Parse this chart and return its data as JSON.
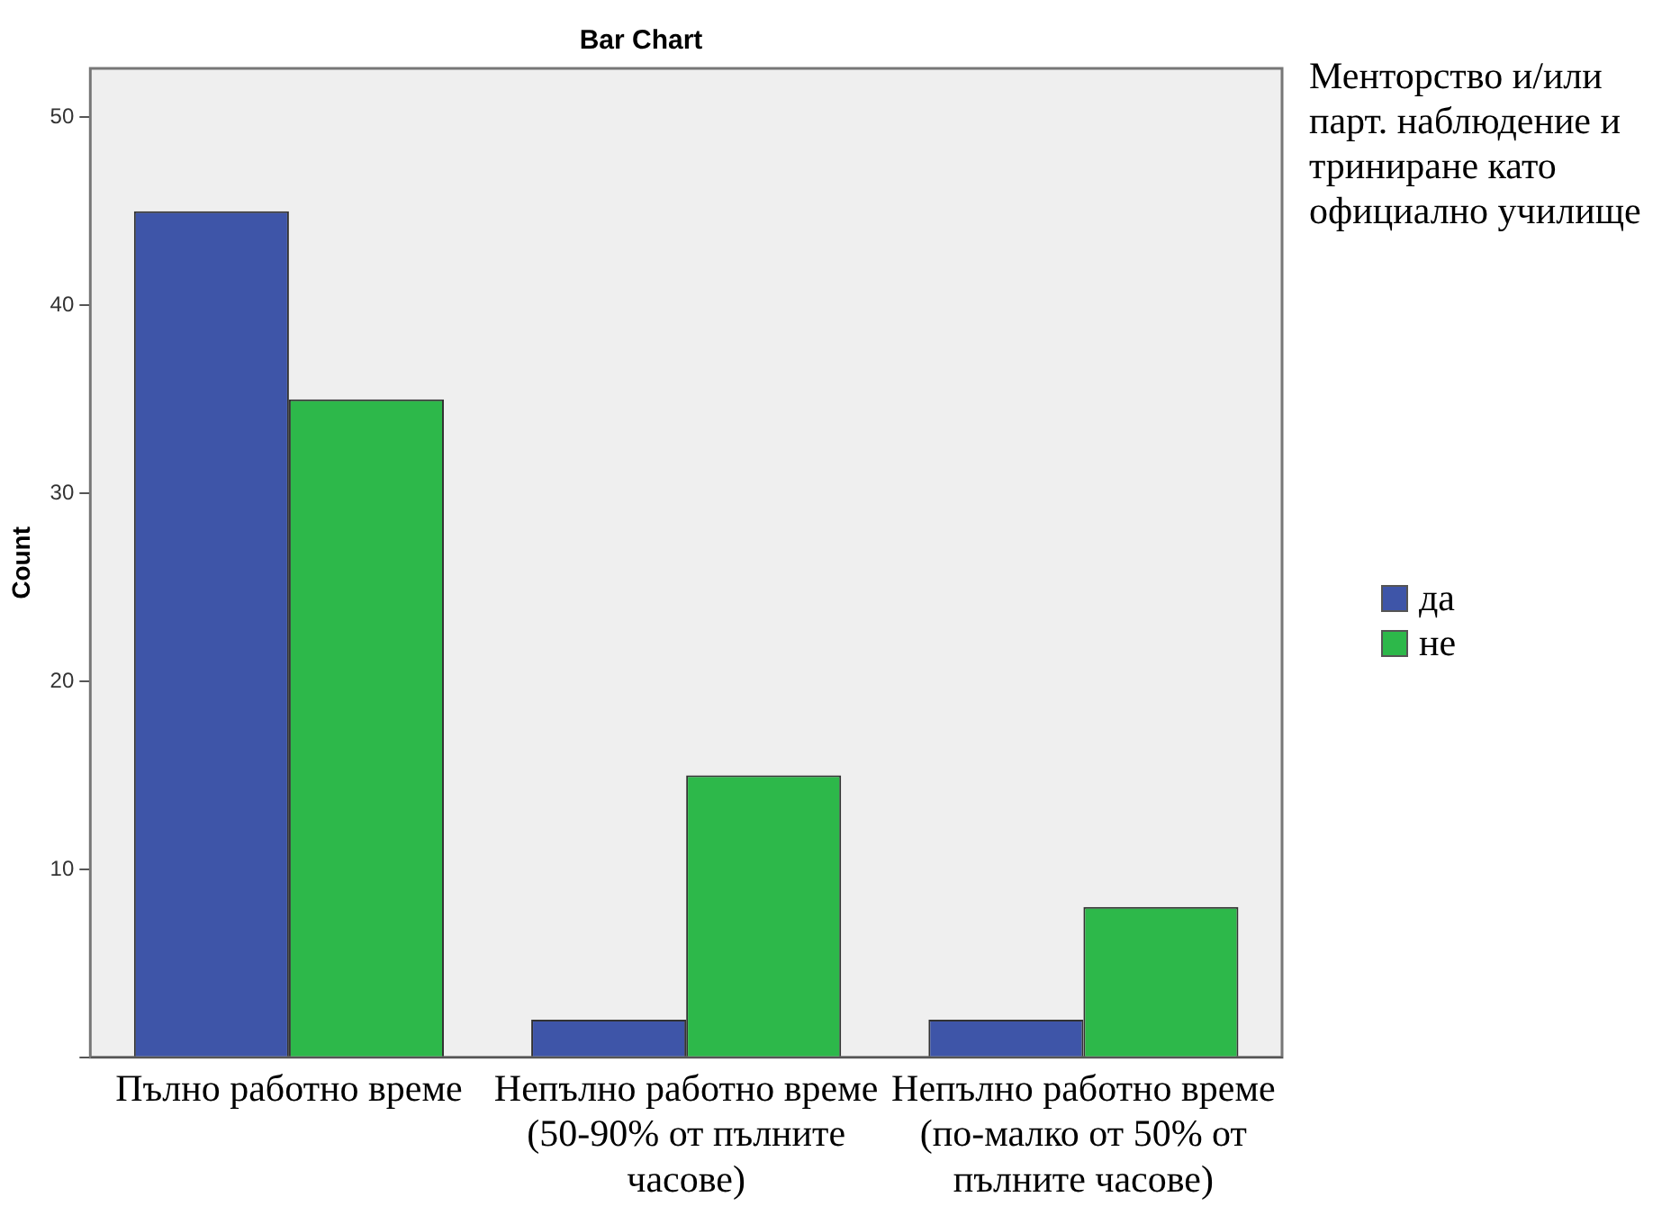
{
  "chart_data": {
    "type": "bar",
    "title": "Bar Chart",
    "ylabel": "Count",
    "legend_title": "Менторство и/или парт. наблюдение и триниране като официално училище",
    "categories": [
      "Пълно работно време",
      "Непълно работно време (50-90% от пълните часове)",
      "Непълно работно време (по-малко от 50% от пълните часове)"
    ],
    "series": [
      {
        "name": "да",
        "color": "#3e55a8",
        "values": [
          45,
          2,
          2
        ]
      },
      {
        "name": "не",
        "color": "#2db84a",
        "values": [
          35,
          15,
          8
        ]
      }
    ],
    "ylim": [
      0,
      52.6
    ],
    "yticks": [
      {
        "value": 0,
        "label": null
      },
      10,
      20,
      30,
      40,
      50
    ],
    "grid": false,
    "legend": "right"
  }
}
